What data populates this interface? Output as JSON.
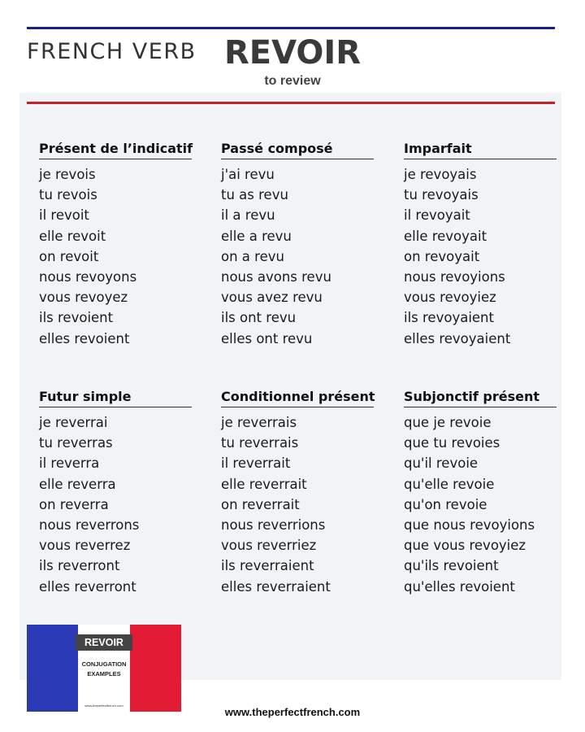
{
  "header": {
    "kicker": "FRENCH VERB",
    "verb": "REVOIR",
    "translation": "to review"
  },
  "tenses": [
    {
      "title": "Présent de l’indicatif",
      "forms": [
        "je revois",
        "tu revois",
        "il revoit",
        "elle revoit",
        "on revoit",
        "nous revoyons",
        "vous revoyez",
        "ils revoient",
        "elles revoient"
      ]
    },
    {
      "title": "Passé composé",
      "forms": [
        "j'ai revu",
        "tu as revu",
        "il a revu",
        "elle a revu",
        "on a revu",
        "nous avons revu",
        "vous avez revu",
        "ils ont revu",
        "elles ont revu"
      ]
    },
    {
      "title": "Imparfait",
      "forms": [
        "je revoyais",
        "tu revoyais",
        "il revoyait",
        "elle revoyait",
        "on revoyait",
        "nous revoyions",
        "vous revoyiez",
        "ils revoyaient",
        "elles revoyaient"
      ]
    },
    {
      "title": "Futur simple",
      "forms": [
        "je reverrai",
        "tu reverras",
        "il reverra",
        "elle reverra",
        "on reverra",
        "nous reverrons",
        "vous reverrez",
        "ils reverront",
        "elles reverront"
      ]
    },
    {
      "title": "Conditionnel présent",
      "forms": [
        "je reverrais",
        "tu reverrais",
        "il reverrait",
        "elle reverrait",
        "on reverrait",
        "nous reverrions",
        "vous reverriez",
        "ils reverraient",
        "elles reverraient"
      ]
    },
    {
      "title": "Subjonctif présent",
      "forms": [
        "que je revoie",
        "que tu revoies",
        "qu'il revoie",
        "qu'elle revoie",
        "qu'on revoie",
        "que nous revoyions",
        "que vous revoyiez",
        "qu'ils revoient",
        "qu'elles revoient"
      ]
    }
  ],
  "logo": {
    "title": "REVOIR",
    "subtitle_line1": "CONJUGATION",
    "subtitle_line2": "EXAMPLES",
    "url": "www.theperfectfrench.com"
  },
  "footer": {
    "site": "www.theperfectfrench.com"
  },
  "colors": {
    "blue_rule": "#1b1f8c",
    "red_rule": "#c3202a",
    "flag_blue": "#2a3ab5",
    "flag_red": "#e21c34",
    "panel_bg": "#f1f4f6"
  }
}
